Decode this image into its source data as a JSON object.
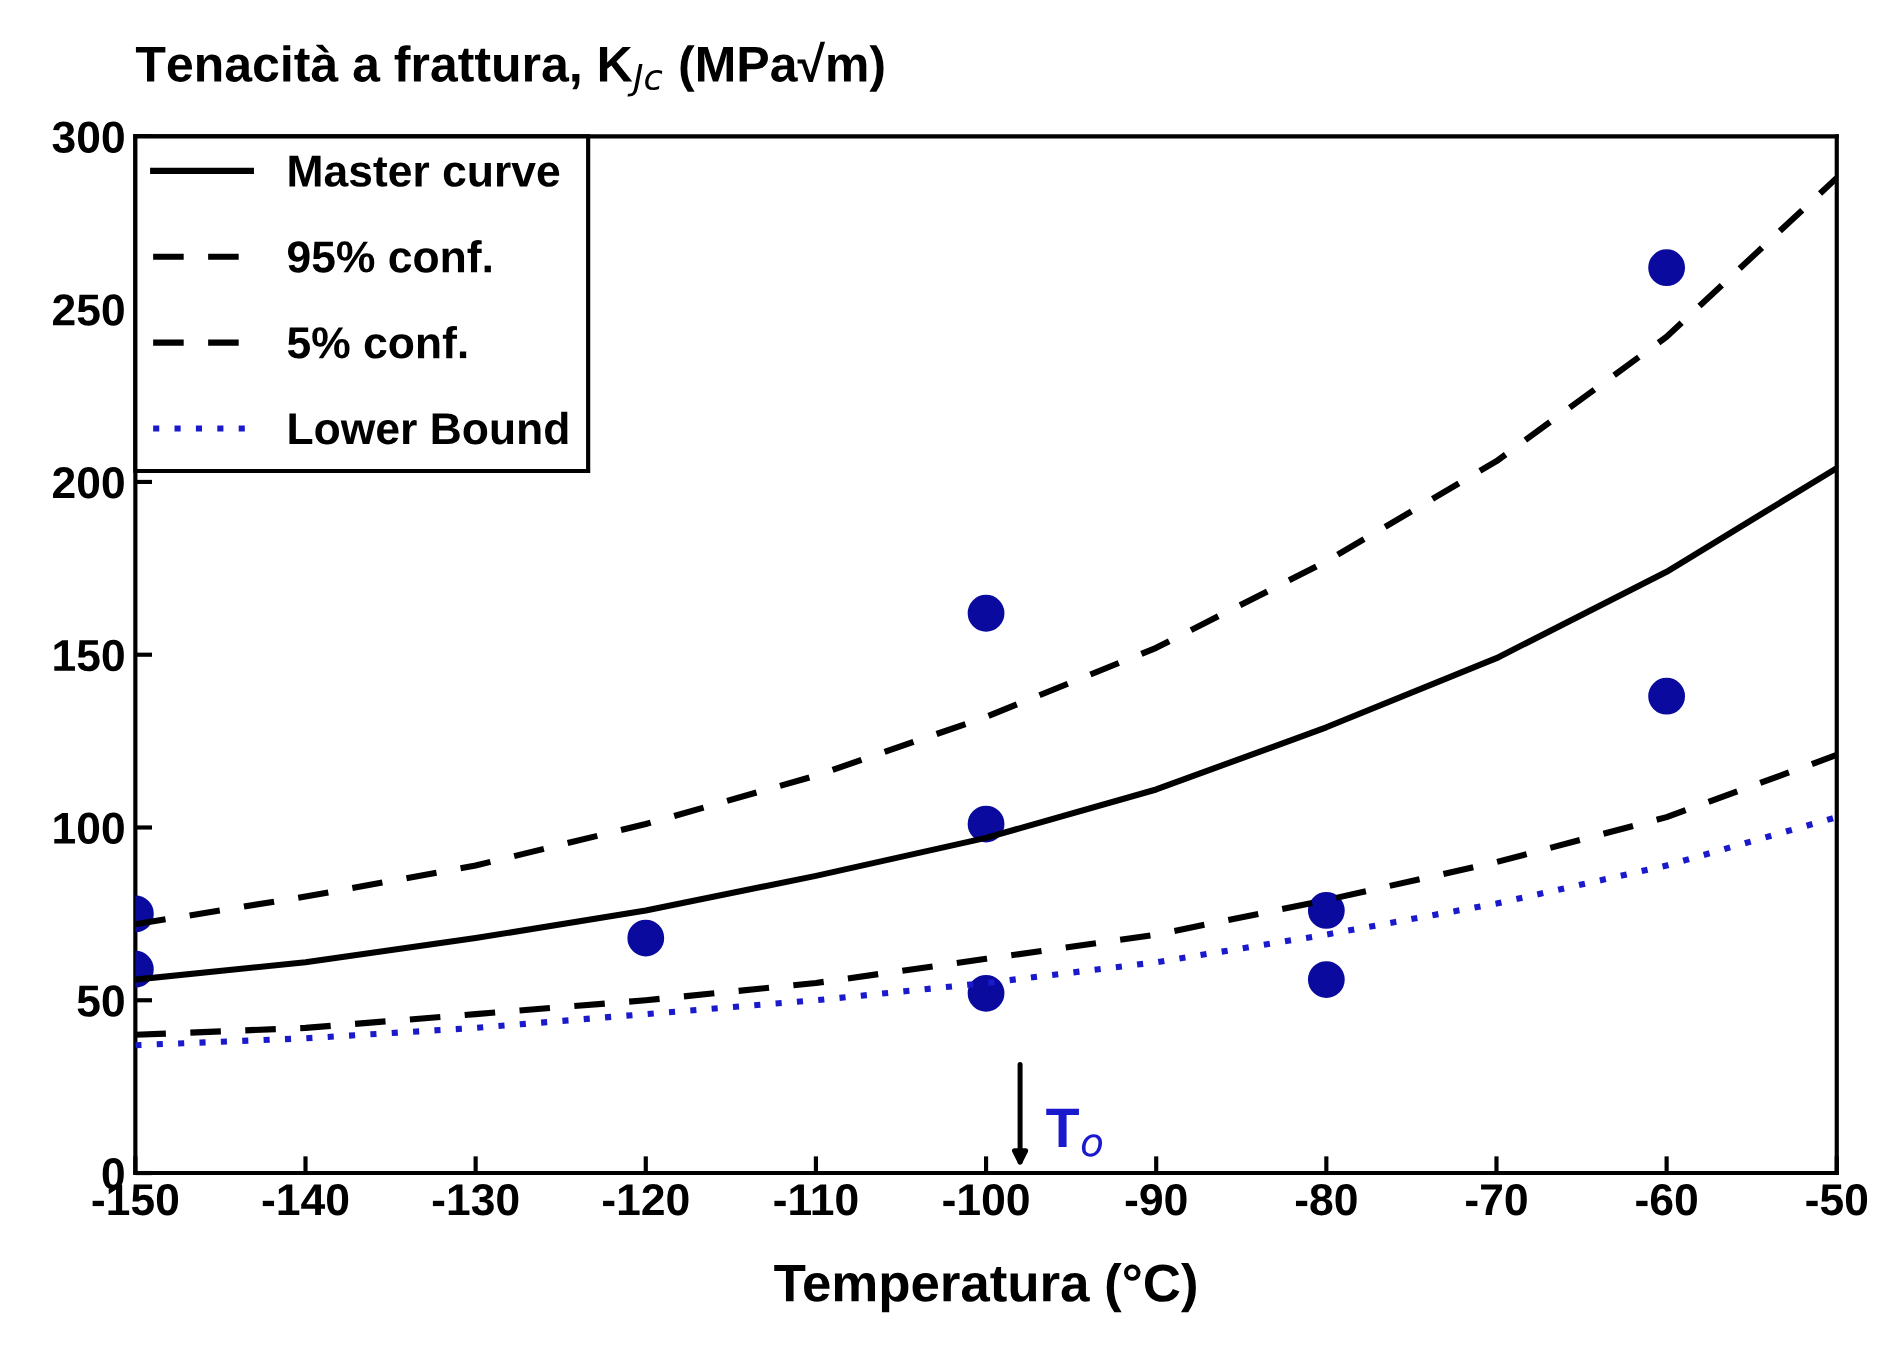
{
  "chart_data": {
    "type": "line",
    "title": "Tenacità a frattura, K$_{Jc}$ (MPa√m)",
    "xlabel": "Temperatura (°C)",
    "xlim": [
      -150,
      -50
    ],
    "xticks": [
      -150,
      -140,
      -130,
      -120,
      -110,
      -100,
      -90,
      -80,
      -70,
      -60,
      -50
    ],
    "ylim": [
      0,
      300
    ],
    "yticks": [
      0,
      50,
      100,
      150,
      200,
      250,
      300
    ],
    "grid": false,
    "legend": "top left",
    "series": [
      {
        "name": "Master curve",
        "color": "#000000",
        "line_style": "solid",
        "marker": "none",
        "x": [
          -150,
          -140,
          -130,
          -120,
          -110,
          -100,
          -90,
          -80,
          -70,
          -60,
          -50
        ],
        "values": [
          56,
          61,
          68,
          76,
          86,
          97,
          111,
          129,
          149,
          174,
          204
        ]
      },
      {
        "name": "95% conf.",
        "color": "#000000",
        "line_style": "dashed",
        "marker": "none",
        "x": [
          -150,
          -140,
          -130,
          -120,
          -110,
          -100,
          -90,
          -80,
          -70,
          -60,
          -50
        ],
        "values": [
          72,
          80,
          89,
          101,
          115,
          132,
          152,
          177,
          206,
          242,
          288
        ]
      },
      {
        "name": "5% conf.",
        "color": "#000000",
        "line_style": "dashed",
        "marker": "none",
        "x": [
          -150,
          -140,
          -130,
          -120,
          -110,
          -100,
          -90,
          -80,
          -70,
          -60,
          -50
        ],
        "values": [
          40,
          42,
          46,
          50,
          55,
          62,
          69,
          79,
          90,
          103,
          121
        ]
      },
      {
        "name": "Lower Bound",
        "color": "#1a1acc",
        "line_style": "dotted",
        "marker": "none",
        "x": [
          -150,
          -140,
          -130,
          -120,
          -110,
          -100,
          -90,
          -80,
          -70,
          -60,
          -50
        ],
        "values": [
          37,
          39,
          42,
          46,
          50,
          55,
          61,
          69,
          78,
          89,
          103
        ]
      },
      {
        "type": "scatter",
        "color": "#0a0a9e",
        "marker": "circle",
        "x": [
          -150,
          -150,
          -120,
          -100,
          -100,
          -100,
          -80,
          -80,
          -60,
          -60
        ],
        "values": [
          75,
          59,
          68,
          162,
          101,
          52,
          76,
          56,
          262,
          138
        ]
      }
    ],
    "annotations": [
      "T$_{o}$"
    ]
  }
}
